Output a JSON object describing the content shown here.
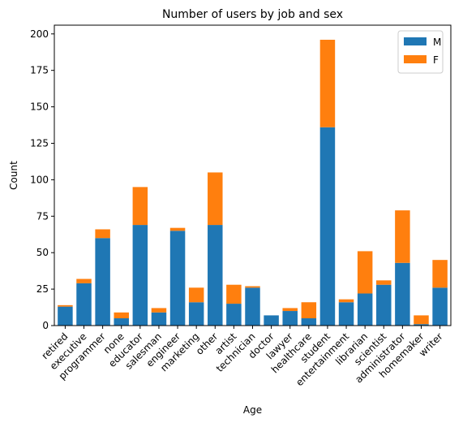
{
  "chart_data": {
    "type": "bar",
    "stacked": true,
    "title": "Number of users by job and sex",
    "xlabel": "Age",
    "ylabel": "Count",
    "ylim": [
      0,
      206
    ],
    "yticks": [
      0,
      25,
      50,
      75,
      100,
      125,
      150,
      175,
      200
    ],
    "grid": false,
    "legend_position": "top-right",
    "categories": [
      "retired",
      "executive",
      "programmer",
      "none",
      "educator",
      "salesman",
      "engineer",
      "marketing",
      "other",
      "artist",
      "technician",
      "doctor",
      "lawyer",
      "healthcare",
      "student",
      "entertainment",
      "librarian",
      "scientist",
      "administrator",
      "homemaker",
      "writer"
    ],
    "series": [
      {
        "name": "M",
        "color": "#1f77b4",
        "values": [
          13,
          29,
          60,
          5,
          69,
          9,
          65,
          16,
          69,
          15,
          26,
          7,
          10,
          5,
          136,
          16,
          22,
          28,
          43,
          1,
          26
        ]
      },
      {
        "name": "F",
        "color": "#ff7f0e",
        "values": [
          1,
          3,
          6,
          4,
          26,
          3,
          2,
          10,
          36,
          13,
          1,
          0,
          2,
          11,
          60,
          2,
          29,
          3,
          36,
          6,
          19
        ]
      }
    ]
  }
}
